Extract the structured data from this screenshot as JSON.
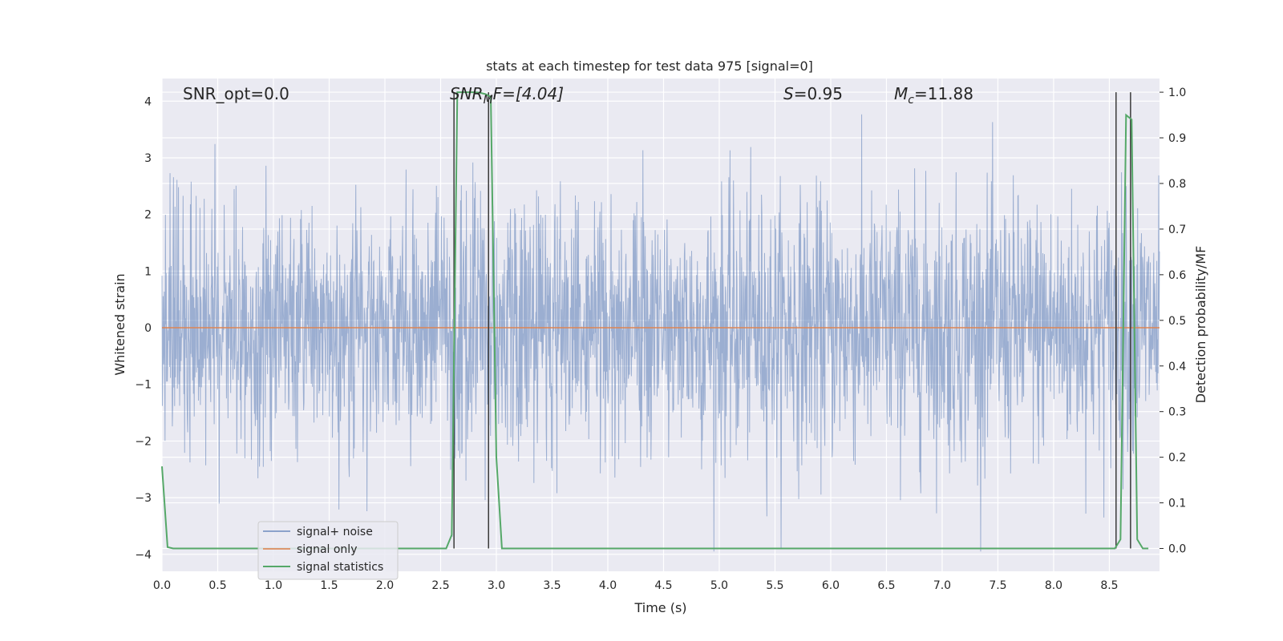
{
  "chart_data": {
    "type": "line",
    "title": "stats at each timestep for test data 975 [signal=0]",
    "xlabel": "Time (s)",
    "ylabel_left": "Whitened strain",
    "ylabel_right": "Detection probability/MF",
    "xlim": [
      0.0,
      8.95
    ],
    "ylim_left": [
      -4.3,
      4.4
    ],
    "ylim_right": [
      -0.05,
      1.03
    ],
    "xticks": [
      0.0,
      0.5,
      1.0,
      1.5,
      2.0,
      2.5,
      3.0,
      3.5,
      4.0,
      4.5,
      5.0,
      5.5,
      6.0,
      6.5,
      7.0,
      7.5,
      8.0,
      8.5
    ],
    "xtick_labels": [
      "0.0",
      "0.5",
      "1.0",
      "1.5",
      "2.0",
      "2.5",
      "3.0",
      "3.5",
      "4.0",
      "4.5",
      "5.0",
      "5.5",
      "6.0",
      "6.5",
      "7.0",
      "7.5",
      "8.0",
      "8.5"
    ],
    "yticks_left": [
      -4,
      -3,
      -2,
      -1,
      0,
      1,
      2,
      3,
      4
    ],
    "ytick_labels_left": [
      "−4",
      "−3",
      "−2",
      "−1",
      "0",
      "1",
      "2",
      "3",
      "4"
    ],
    "yticks_right": [
      0.0,
      0.1,
      0.2,
      0.3,
      0.4,
      0.5,
      0.6,
      0.7,
      0.8,
      0.9,
      1.0
    ],
    "ytick_labels_right": [
      "0.0",
      "0.1",
      "0.2",
      "0.3",
      "0.4",
      "0.5",
      "0.6",
      "0.7",
      "0.8",
      "0.9",
      "1.0"
    ],
    "grid": true,
    "legend_position": "lower-left",
    "annotations": {
      "snr_opt": "SNR_opt=0.0",
      "snr_mf_name": "SNR",
      "snr_mf_sub": "M",
      "snr_mf_rest": "F=[4.04]",
      "s_name": "S",
      "s_rest": "=0.95",
      "mc_name": "M",
      "mc_sub": "c",
      "mc_rest": "=11.88"
    },
    "series": [
      {
        "name": "signal+ noise",
        "axis": "left",
        "color": "#4c72b0",
        "note_values": "dense whitened noise, roughly |y| up to ~4",
        "amplitude_range": [
          -3.95,
          4.03
        ]
      },
      {
        "name": "signal only",
        "axis": "left",
        "color": "#dd8452",
        "x": [
          0.0,
          8.95
        ],
        "y": [
          0.0,
          0.0
        ]
      },
      {
        "name": "signal statistics",
        "axis": "right",
        "color": "#55a868",
        "x": [
          0.0,
          0.05,
          0.1,
          0.15,
          2.5,
          2.55,
          2.6,
          2.65,
          2.7,
          2.75,
          2.8,
          2.85,
          2.9,
          2.95,
          3.0,
          3.05,
          3.1,
          3.15,
          8.5,
          8.55,
          8.6,
          8.65,
          8.7,
          8.75,
          8.8,
          8.85
        ],
        "y": [
          0.18,
          0.003,
          0.0,
          0.0,
          0.0,
          0.0,
          0.03,
          1.0,
          1.0,
          1.0,
          1.0,
          0.999,
          0.996,
          0.99,
          0.2,
          0.0,
          0.0,
          0.0,
          0.0,
          0.0,
          0.02,
          0.95,
          0.94,
          0.02,
          0.0,
          0.0
        ]
      }
    ],
    "vertical_lines": [
      2.62,
      2.93,
      8.56,
      8.69
    ],
    "vlines_ymax": 1.0
  },
  "colors": {
    "background_axes": "#eaeaf2",
    "grid": "#ffffff",
    "vline": "#3a3a3a"
  }
}
